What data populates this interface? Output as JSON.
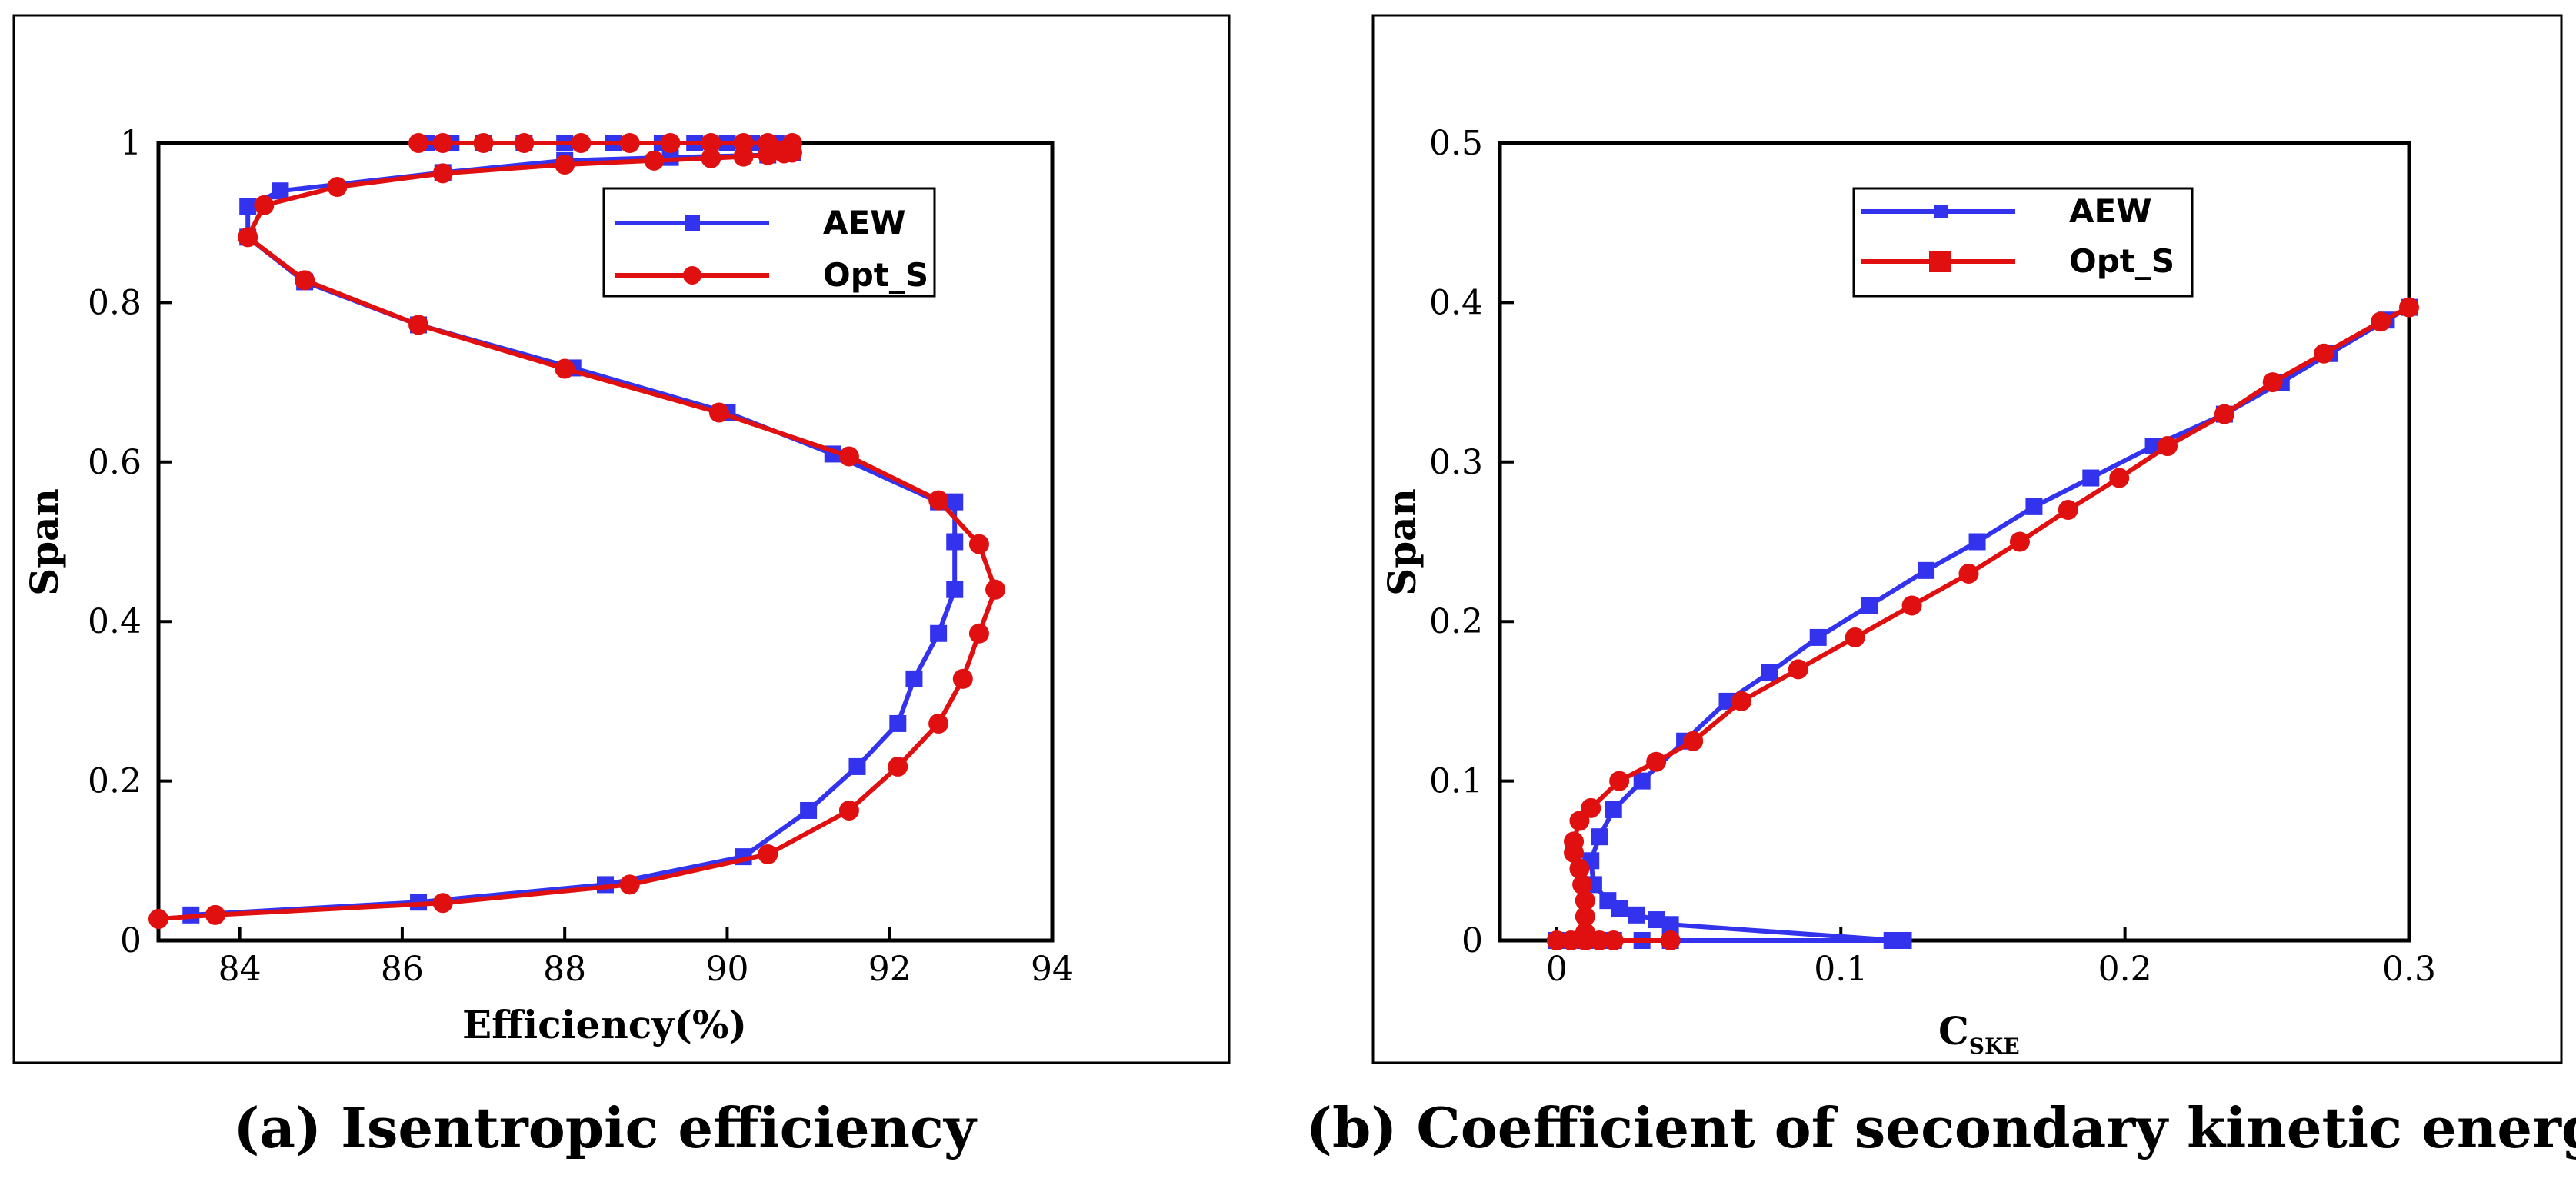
{
  "colors": {
    "aew": "#3333ee",
    "opt": "#e01010"
  },
  "chart_data": [
    {
      "type": "line",
      "title": "(a) Isentropic efficiency",
      "xlabel": "Efficiency(%)",
      "ylabel": "Span",
      "xlim": [
        83,
        94
      ],
      "ylim": [
        0,
        1
      ],
      "xticks": [
        84,
        86,
        88,
        90,
        92,
        94
      ],
      "xtick_labels": [
        "84",
        "86",
        "88",
        "90",
        "92",
        "94"
      ],
      "yticks": [
        0,
        0.2,
        0.4,
        0.6,
        0.8,
        1
      ],
      "ytick_labels": [
        "0",
        "0.2",
        "0.4",
        "0.6",
        "0.8",
        "1"
      ],
      "legend": "top-right",
      "series": [
        {
          "name": "AEW",
          "color": "#3333ee",
          "marker": "square",
          "x": [
            83.4,
            86.2,
            88.5,
            90.2,
            91.0,
            91.6,
            92.1,
            92.3,
            92.6,
            92.8,
            92.8,
            92.8,
            92.6,
            91.3,
            90.0,
            88.1,
            86.2,
            84.8,
            84.1,
            84.1,
            84.5,
            86.5,
            88.0,
            89.3,
            90.5,
            90.8
          ],
          "y": [
            0.032,
            0.048,
            0.07,
            0.105,
            0.163,
            0.218,
            0.272,
            0.328,
            0.385,
            0.44,
            0.5,
            0.55,
            0.55,
            0.61,
            0.662,
            0.718,
            0.772,
            0.826,
            0.882,
            0.92,
            0.94,
            0.963,
            0.978,
            0.982,
            0.985,
            0.988
          ],
          "x_top": [
            86.3,
            86.6,
            87.0,
            87.5,
            88.0,
            88.6,
            89.2,
            89.6,
            90.0,
            90.3,
            90.6
          ],
          "y_top": [
            1,
            1,
            1,
            1,
            1,
            1,
            1,
            1,
            1,
            1,
            1
          ]
        },
        {
          "name": "Opt_S",
          "color": "#e01010",
          "marker": "circle",
          "x": [
            83.0,
            83.7,
            86.5,
            88.8,
            90.5,
            91.5,
            92.1,
            92.6,
            92.9,
            93.1,
            93.3,
            93.1,
            92.6,
            91.5,
            89.9,
            88.0,
            86.2,
            84.8,
            84.1,
            84.3,
            85.2,
            86.5,
            88.0,
            89.1,
            89.8,
            90.2,
            90.5,
            90.7,
            90.8
          ],
          "y": [
            0.027,
            0.032,
            0.047,
            0.07,
            0.108,
            0.163,
            0.218,
            0.272,
            0.328,
            0.385,
            0.44,
            0.497,
            0.552,
            0.607,
            0.662,
            0.717,
            0.772,
            0.828,
            0.882,
            0.922,
            0.945,
            0.962,
            0.973,
            0.978,
            0.981,
            0.983,
            0.985,
            0.987,
            0.988
          ],
          "x_top": [
            86.2,
            86.5,
            87.0,
            87.5,
            88.2,
            88.8,
            89.3,
            89.8,
            90.2,
            90.5,
            90.8
          ],
          "y_top": [
            1,
            1,
            1,
            1,
            1,
            1,
            1,
            1,
            1,
            1,
            1
          ]
        }
      ]
    },
    {
      "type": "line",
      "title": "(b) Coefficient of secondary kinetic energy",
      "xlabel": "C",
      "xlabel_sub": "SKE",
      "ylabel": "Span",
      "xlim": [
        -0.02,
        0.3
      ],
      "ylim": [
        0,
        0.5
      ],
      "xticks": [
        0,
        0.1,
        0.2,
        0.3
      ],
      "xtick_labels": [
        "0",
        "0.1",
        "0.2",
        "0.3"
      ],
      "yticks": [
        0,
        0.1,
        0.2,
        0.3,
        0.4,
        0.5
      ],
      "ytick_labels": [
        "0",
        "0.1",
        "0.2",
        "0.3",
        "0.4",
        "0.5"
      ],
      "legend": "top-center",
      "series": [
        {
          "name": "AEW",
          "color": "#3333ee",
          "marker": "square",
          "x": [
            0.12,
            0.04,
            0.035,
            0.028,
            0.022,
            0.018,
            0.013,
            0.012,
            0.015,
            0.02,
            0.03,
            0.045,
            0.06,
            0.075,
            0.092,
            0.11,
            0.13,
            0.148,
            0.168,
            0.188,
            0.21,
            0.235,
            0.255,
            0.272,
            0.292,
            0.3
          ],
          "y": [
            0.0,
            0.01,
            0.013,
            0.016,
            0.02,
            0.025,
            0.035,
            0.05,
            0.065,
            0.082,
            0.1,
            0.125,
            0.15,
            0.168,
            0.19,
            0.21,
            0.232,
            0.25,
            0.272,
            0.29,
            0.31,
            0.33,
            0.35,
            0.368,
            0.389,
            0.397
          ],
          "x_base": [
            0.0,
            0.01,
            0.02,
            0.03,
            0.04,
            0.118,
            0.122
          ],
          "y_base": [
            0,
            0,
            0,
            0,
            0,
            0,
            0
          ]
        },
        {
          "name": "Opt_S",
          "color": "#e01010",
          "marker": "circle",
          "x": [
            0.01,
            0.01,
            0.01,
            0.009,
            0.008,
            0.006,
            0.006,
            0.008,
            0.012,
            0.022,
            0.035,
            0.048,
            0.065,
            0.085,
            0.105,
            0.125,
            0.145,
            0.163,
            0.18,
            0.198,
            0.215,
            0.235,
            0.252,
            0.27,
            0.29,
            0.3
          ],
          "y": [
            0.005,
            0.015,
            0.025,
            0.035,
            0.045,
            0.055,
            0.062,
            0.075,
            0.083,
            0.1,
            0.112,
            0.125,
            0.15,
            0.17,
            0.19,
            0.21,
            0.23,
            0.25,
            0.27,
            0.29,
            0.31,
            0.33,
            0.35,
            0.368,
            0.388,
            0.397
          ],
          "x_base": [
            0.0,
            0.005,
            0.01,
            0.015,
            0.02,
            0.04
          ],
          "y_base": [
            0,
            0,
            0,
            0,
            0,
            0
          ]
        }
      ]
    }
  ]
}
